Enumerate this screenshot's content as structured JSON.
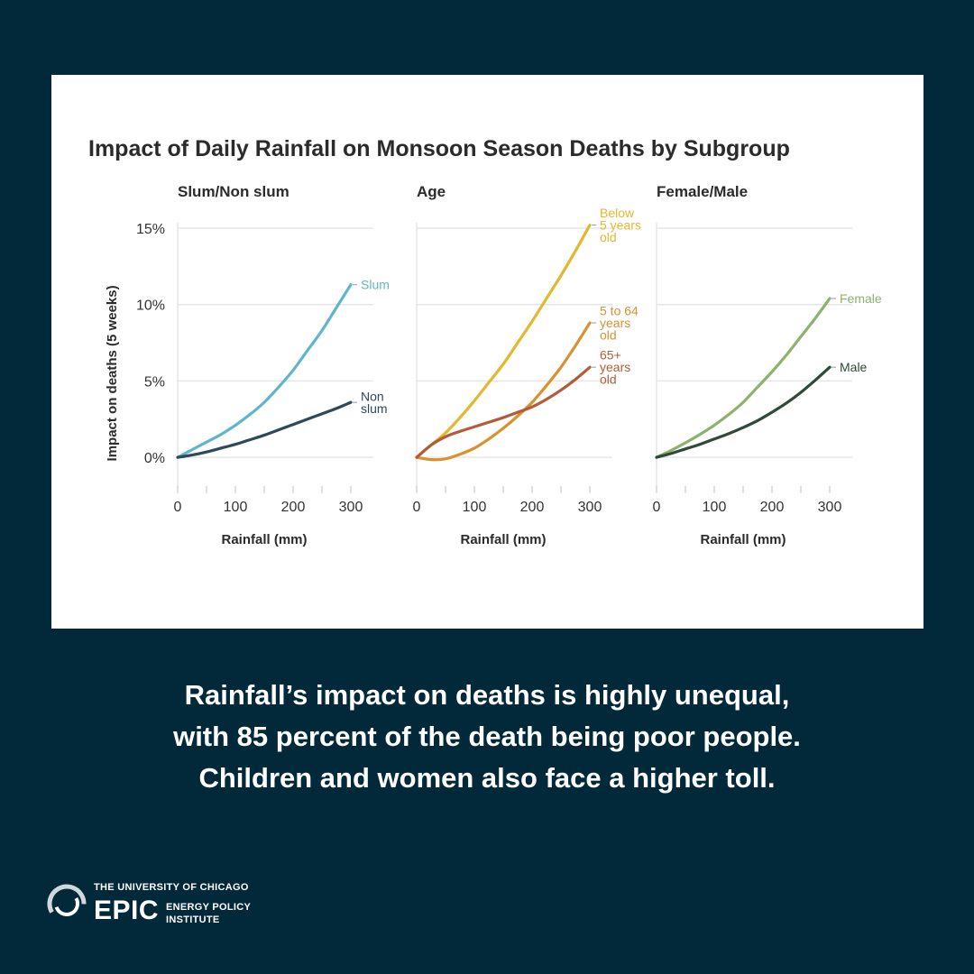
{
  "colors": {
    "background": "#02293a",
    "card": "#ffffff",
    "grid": "#e6e6e6",
    "axis": "#555555"
  },
  "caption": [
    "Rainfall’s impact on deaths is highly unequal,",
    "with 85 percent of the death being poor people.",
    "Children and women also face a higher toll."
  ],
  "logo": {
    "top_line": "THE UNIVERSITY OF CHICAGO",
    "acronym": "EPIC",
    "sub_line_1": "ENERGY POLICY",
    "sub_line_2": "INSTITUTE",
    "icon": "epic-swirl-logo"
  },
  "chart_data": {
    "type": "line",
    "title": "Impact of Daily Rainfall on Monsoon Season Deaths by Subgroup",
    "ylabel": "Impact on deaths (5 weeks)",
    "xlabel": "Rainfall (mm)",
    "ylim": [
      -2,
      15
    ],
    "xlim": [
      0,
      300
    ],
    "yticks": [
      "0%",
      "5%",
      "10%",
      "15%"
    ],
    "ytick_values": [
      0,
      5,
      10,
      15
    ],
    "xticks": [
      "0",
      "100",
      "200",
      "300"
    ],
    "xtick_values": [
      0,
      100,
      200,
      300
    ],
    "x": [
      0,
      25,
      50,
      75,
      100,
      125,
      150,
      175,
      200,
      225,
      250,
      275,
      300
    ],
    "panels": [
      {
        "title": "Slum/Non slum",
        "series": [
          {
            "name": "Slum",
            "label_lines": [
              "Slum"
            ],
            "color": "#5fb6cc",
            "values": [
              0,
              0.5,
              1.0,
              1.5,
              2.1,
              2.8,
              3.6,
              4.6,
              5.7,
              7.0,
              8.3,
              9.8,
              11.3
            ]
          },
          {
            "name": "Non slum",
            "label_lines": [
              "Non",
              "slum"
            ],
            "color": "#2e4a58",
            "values": [
              0,
              0.15,
              0.35,
              0.6,
              0.85,
              1.15,
              1.45,
              1.8,
              2.15,
              2.5,
              2.85,
              3.2,
              3.6
            ]
          }
        ]
      },
      {
        "title": "Age",
        "series": [
          {
            "name": "Below 5 years old",
            "label_lines": [
              "Below",
              "5 years",
              "old"
            ],
            "color": "#e3b82e",
            "values": [
              0,
              0.8,
              1.6,
              2.6,
              3.7,
              4.9,
              6.1,
              7.5,
              8.9,
              10.4,
              11.9,
              13.5,
              15.2
            ]
          },
          {
            "name": "5 to 64 years old",
            "label_lines": [
              "5 to 64",
              "years",
              "old"
            ],
            "color": "#d9922f",
            "values": [
              0,
              -0.15,
              -0.1,
              0.2,
              0.6,
              1.2,
              1.9,
              2.7,
              3.6,
              4.7,
              5.9,
              7.3,
              8.8
            ]
          },
          {
            "name": "65+ years old",
            "label_lines": [
              "65+",
              "years",
              "old"
            ],
            "color": "#b35c3a",
            "values": [
              0,
              0.8,
              1.35,
              1.7,
              2.0,
              2.3,
              2.6,
              2.95,
              3.3,
              3.8,
              4.4,
              5.1,
              5.9
            ]
          }
        ]
      },
      {
        "title": "Female/Male",
        "series": [
          {
            "name": "Female",
            "label_lines": [
              "Female"
            ],
            "color": "#8cb26e",
            "values": [
              0,
              0.45,
              0.95,
              1.5,
              2.1,
              2.8,
              3.6,
              4.6,
              5.6,
              6.7,
              7.9,
              9.1,
              10.4
            ]
          },
          {
            "name": "Male",
            "label_lines": [
              "Male"
            ],
            "color": "#2f4a38",
            "values": [
              0,
              0.25,
              0.55,
              0.85,
              1.2,
              1.55,
              1.95,
              2.4,
              2.95,
              3.55,
              4.25,
              5.05,
              5.9
            ]
          }
        ]
      }
    ]
  }
}
